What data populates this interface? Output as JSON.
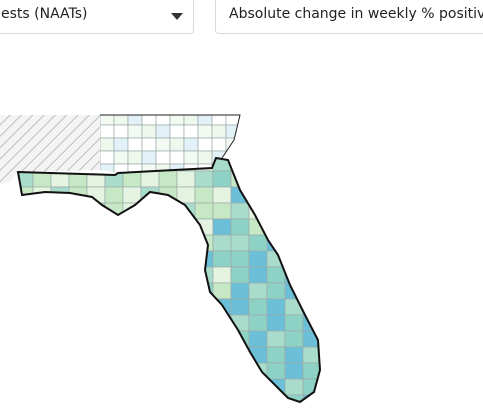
{
  "dropdowns": [
    {
      "label": "ests (NAATs)"
    },
    {
      "label": "Absolute change in weekly % positivity"
    }
  ]
}
